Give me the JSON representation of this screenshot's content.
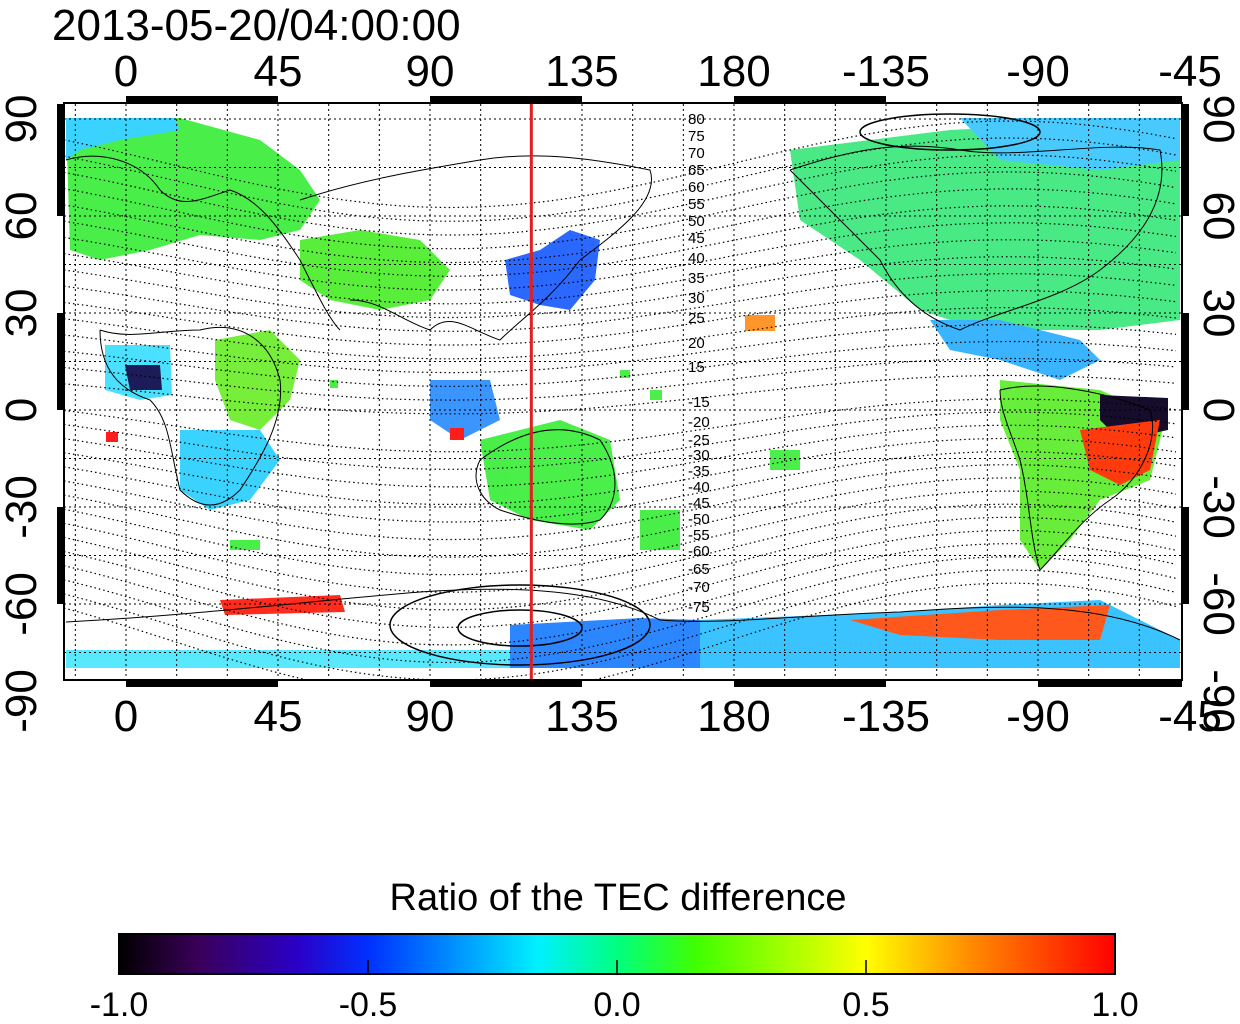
{
  "timestamp": "2013-05-20/04:00:00",
  "map": {
    "longitude_ticks_top": [
      "0",
      "45",
      "90",
      "135",
      "180",
      "-135",
      "-90",
      "-45"
    ],
    "longitude_ticks_bottom": [
      "0",
      "45",
      "90",
      "135",
      "180",
      "-135",
      "-90",
      "-45"
    ],
    "latitude_ticks_left": [
      "90",
      "60",
      "30",
      "0",
      "-30",
      "-60",
      "-90"
    ],
    "latitude_ticks_right": [
      "90",
      "60",
      "30",
      "0",
      "-30",
      "-60",
      "-90"
    ],
    "longitude_tick_values": [
      0,
      45,
      90,
      135,
      180,
      225,
      270,
      315
    ],
    "latitude_tick_values": [
      90,
      60,
      30,
      0,
      -30,
      -60,
      -90
    ],
    "contour_labels_north": [
      "80",
      "75",
      "70",
      "65",
      "60",
      "55",
      "50",
      "45",
      "40",
      "35",
      "30",
      "25",
      "20",
      "15"
    ],
    "contour_labels_south": [
      "-15",
      "-20",
      "-25",
      "-30",
      "-35",
      "-40",
      "-45",
      "-50",
      "-55",
      "-60",
      "-65",
      "-70",
      "-75"
    ],
    "meridian_marker_longitude": 120,
    "meridian_marker_color": "#e02020"
  },
  "colorbar": {
    "title": "Ratio of the TEC difference",
    "tick_labels": [
      "-1.0",
      "-0.5",
      "0.0",
      "0.5",
      "1.0"
    ],
    "range": [
      -1.0,
      1.0
    ],
    "colormap": [
      "#000000",
      "#3a005a",
      "#2a00c8",
      "#0040ff",
      "#00a0ff",
      "#00f0ff",
      "#00ffa0",
      "#00ff00",
      "#a0ff00",
      "#ffff00",
      "#ffa000",
      "#ff4000",
      "#ff0000"
    ]
  }
}
